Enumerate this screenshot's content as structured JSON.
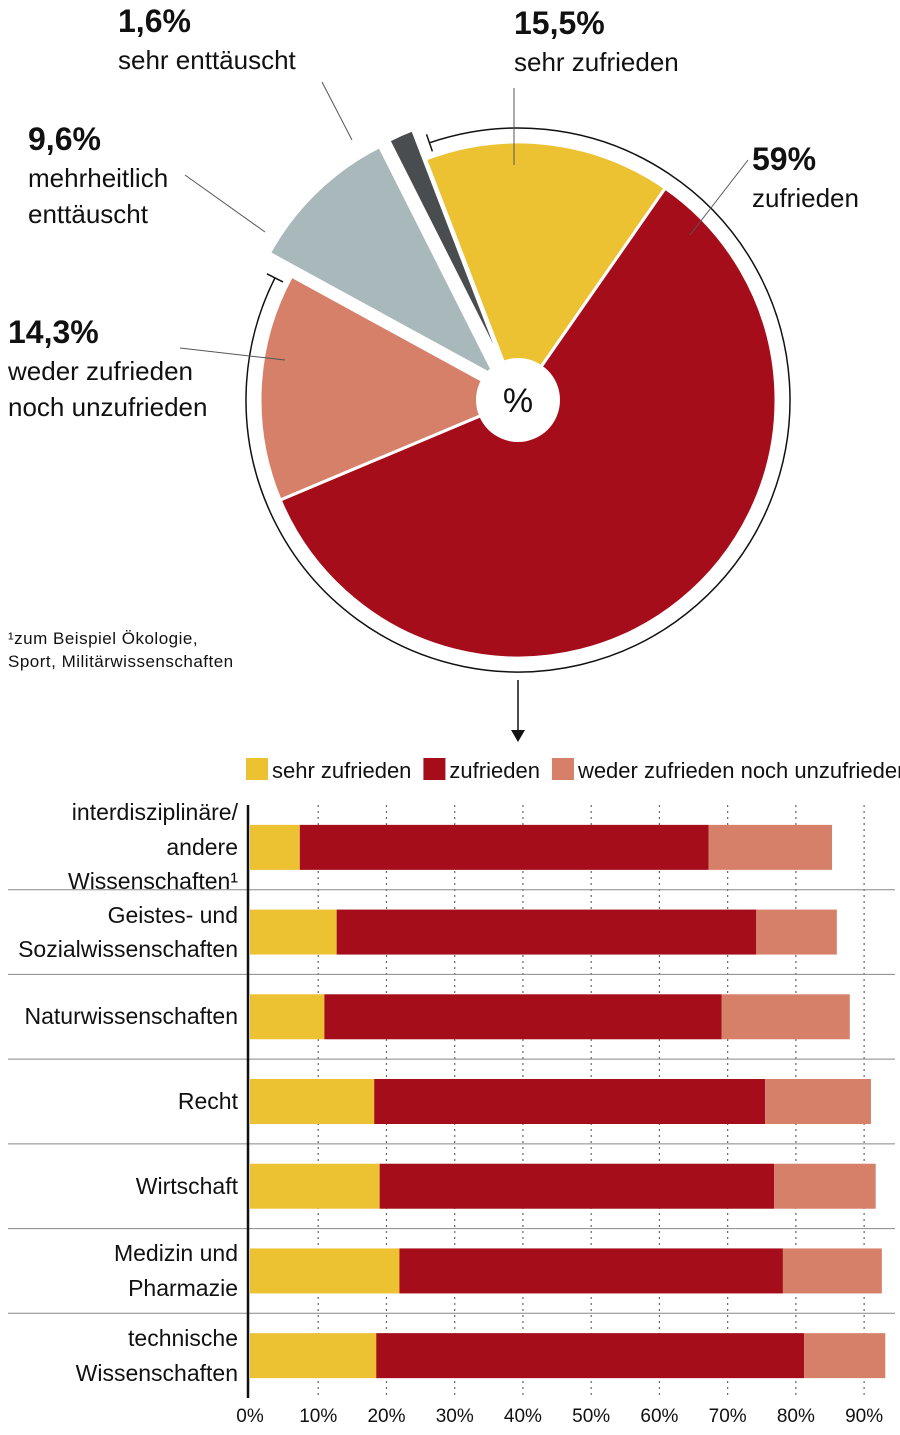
{
  "chart_data": [
    {
      "type": "pie",
      "center_label": "%",
      "labels": [
        "sehr zufrieden",
        "zufrieden",
        "weder zufrieden\nnoch unzufrieden",
        "mehrheitlich\nenttäuscht",
        "sehr enttäuscht"
      ],
      "values": [
        15.5,
        59,
        14.3,
        9.6,
        1.6
      ],
      "value_labels": [
        "15,5%",
        "59%",
        "14,3%",
        "9,6%",
        "1,6%"
      ],
      "colors": [
        "#ecc232",
        "#a50d1a",
        "#d6806a",
        "#a9b8bb",
        "#4a4d50"
      ]
    },
    {
      "type": "bar",
      "orientation": "horizontal",
      "stacked": true,
      "footnote": "¹zum Beispiel Ökologie,\nSport, Militärwissenschaften",
      "categories": [
        "interdisziplinäre/\nandere Wissenschaften¹",
        "Geistes- und\nSozialwissenschaften",
        "Naturwissenschaften",
        "Recht",
        "Wirtschaft",
        "Medizin und\nPharmazie",
        "technische\nWissenschaften"
      ],
      "series": [
        {
          "name": "sehr zufrieden",
          "color": "#ecc232",
          "values": [
            7.3,
            12.7,
            10.9,
            18.2,
            19.0,
            21.9,
            18.5
          ]
        },
        {
          "name": "zufrieden",
          "color": "#a50d1a",
          "values": [
            59.9,
            61.5,
            58.2,
            57.3,
            57.8,
            56.2,
            62.7
          ]
        },
        {
          "name": "weder zufrieden noch unzufrieden",
          "color": "#d6806a",
          "values": [
            18.1,
            11.8,
            18.8,
            15.5,
            14.9,
            14.5,
            11.9
          ]
        }
      ],
      "xlim": [
        0,
        93.5
      ],
      "xticks": [
        {
          "value": 0,
          "label": "0%"
        },
        {
          "value": 10,
          "label": "10%"
        },
        {
          "value": 20,
          "label": "20%"
        },
        {
          "value": 30,
          "label": "30%"
        },
        {
          "value": 40,
          "label": "40%"
        },
        {
          "value": 50,
          "label": "50%"
        },
        {
          "value": 60,
          "label": "60%"
        },
        {
          "value": 70,
          "label": "70%"
        },
        {
          "value": 80,
          "label": "80%"
        },
        {
          "value": 90,
          "label": "90%"
        }
      ],
      "grid": true
    }
  ]
}
